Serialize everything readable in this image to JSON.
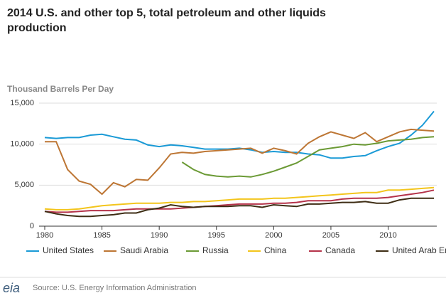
{
  "chart_data": {
    "type": "line",
    "title": "2014 U.S. and other top 5, total petroleum and other liquids production",
    "y_label": "Thousand Barrels Per Day",
    "source": "Source: U.S. Energy Information Administration",
    "logo": "eia",
    "x": [
      1980,
      1981,
      1982,
      1983,
      1984,
      1985,
      1986,
      1987,
      1988,
      1989,
      1990,
      1991,
      1992,
      1993,
      1994,
      1995,
      1996,
      1997,
      1998,
      1999,
      2000,
      2001,
      2002,
      2003,
      2004,
      2005,
      2006,
      2007,
      2008,
      2009,
      2010,
      2011,
      2012,
      2013,
      2014
    ],
    "xlim": [
      1980,
      2014
    ],
    "xticks": [
      1980,
      1985,
      1990,
      1995,
      2000,
      2005,
      2010
    ],
    "ylim": [
      0,
      15000
    ],
    "yticks": [
      0,
      {
        "value": 5000,
        "label": "5,000"
      },
      {
        "value": 10000,
        "label": "10,000"
      },
      {
        "value": 15000,
        "label": "15,000"
      }
    ],
    "grid": true,
    "legend": "bottom",
    "series": [
      {
        "name": "United States",
        "color": "#1a9ad6",
        "values": [
          10800,
          10700,
          10800,
          10800,
          11100,
          11200,
          10900,
          10600,
          10500,
          9900,
          9700,
          9900,
          9800,
          9600,
          9400,
          9400,
          9400,
          9500,
          9300,
          9000,
          9100,
          9000,
          9000,
          8800,
          8700,
          8300,
          8300,
          8500,
          8600,
          9200,
          9700,
          10100,
          11100,
          12300,
          14000
        ]
      },
      {
        "name": "Saudi Arabia",
        "color": "#bd7634",
        "values": [
          10300,
          10300,
          6900,
          5500,
          5100,
          3900,
          5300,
          4800,
          5700,
          5600,
          7100,
          8800,
          9000,
          8900,
          9100,
          9200,
          9300,
          9400,
          9500,
          8900,
          9500,
          9200,
          8800,
          10100,
          10900,
          11500,
          11100,
          10700,
          11400,
          10300,
          10900,
          11500,
          11800,
          11700,
          11600
        ]
      },
      {
        "name": "Russia",
        "color": "#6b9a35",
        "values": [
          null,
          null,
          null,
          null,
          null,
          null,
          null,
          null,
          null,
          null,
          null,
          null,
          7800,
          6900,
          6300,
          6100,
          6000,
          6100,
          6000,
          6300,
          6700,
          7200,
          7700,
          8500,
          9300,
          9500,
          9700,
          10000,
          9900,
          10100,
          10400,
          10500,
          10600,
          10800,
          10900
        ]
      },
      {
        "name": "China",
        "color": "#f3c51c",
        "values": [
          2100,
          2000,
          2000,
          2100,
          2300,
          2500,
          2600,
          2700,
          2800,
          2800,
          2800,
          2900,
          2900,
          3000,
          3000,
          3100,
          3200,
          3300,
          3300,
          3300,
          3400,
          3400,
          3500,
          3600,
          3700,
          3800,
          3900,
          4000,
          4100,
          4100,
          4400,
          4400,
          4500,
          4600,
          4700
        ]
      },
      {
        "name": "Canada",
        "color": "#b5334a",
        "values": [
          1800,
          1700,
          1700,
          1800,
          1900,
          1900,
          1900,
          2000,
          2100,
          2100,
          2100,
          2100,
          2200,
          2300,
          2400,
          2500,
          2600,
          2700,
          2700,
          2700,
          2800,
          2800,
          2900,
          3100,
          3100,
          3100,
          3300,
          3400,
          3400,
          3400,
          3500,
          3700,
          3900,
          4100,
          4400
        ]
      },
      {
        "name": "United Arab Emirates",
        "color": "#3e2d14",
        "values": [
          1800,
          1500,
          1300,
          1200,
          1200,
          1300,
          1400,
          1600,
          1600,
          2000,
          2200,
          2600,
          2400,
          2300,
          2400,
          2400,
          2400,
          2500,
          2500,
          2300,
          2600,
          2500,
          2400,
          2700,
          2700,
          2800,
          2900,
          2900,
          3000,
          2800,
          2800,
          3200,
          3400,
          3400,
          3400
        ]
      }
    ]
  }
}
